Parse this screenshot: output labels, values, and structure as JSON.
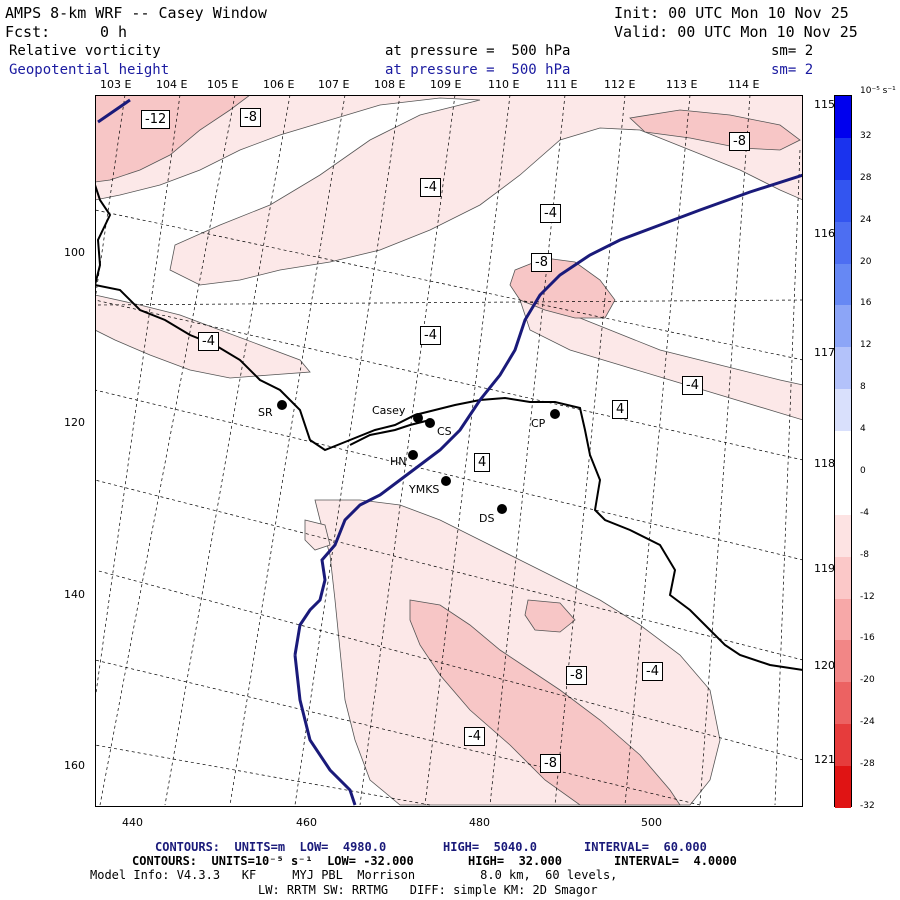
{
  "header": {
    "title": "AMPS 8-km WRF -- Casey Window",
    "init": "Init: 00 UTC Mon 10 Nov 25",
    "fcst_label": "Fcst:",
    "fcst_value": "0 h",
    "valid": "Valid: 00 UTC Mon 10 Nov 25",
    "field1_name": "Relative vorticity",
    "field1_level": "at pressure =  500 hPa",
    "field1_sm": "sm= 2",
    "field2_name": "Geopotential height",
    "field2_level": "at pressure =  500 hPa",
    "field2_sm": "sm= 2"
  },
  "axes": {
    "top_longitudes": [
      "103 E",
      "104 E",
      "105 E",
      "106 E",
      "107 E",
      "108 E",
      "109 E",
      "110 E",
      "111 E",
      "112 E",
      "113 E",
      "114 E"
    ],
    "right_longitudes": [
      "115 E",
      "116 E",
      "117 E",
      "118 E",
      "119 E",
      "120 E",
      "121 E"
    ],
    "x_ticks": [
      "440",
      "460",
      "480",
      "500"
    ],
    "y_ticks": [
      "100",
      "120",
      "140",
      "160"
    ]
  },
  "colorbar": {
    "unit": "10⁻⁵ s⁻¹",
    "labels": [
      "32",
      "28",
      "24",
      "20",
      "16",
      "12",
      "8",
      "4",
      "0",
      "-4",
      "-8",
      "-12",
      "-16",
      "-20",
      "-24",
      "-28",
      "-32"
    ],
    "colors": [
      "#0000ee",
      "#1a33ee",
      "#3355f0",
      "#4d6ef2",
      "#6688f4",
      "#8ca5f7",
      "#b3c2fa",
      "#d9e0fc",
      "#ffffff",
      "#ffffff",
      "#fde3e3",
      "#fbc8c8",
      "#f7a8a8",
      "#f28686",
      "#ec6262",
      "#e63c3c",
      "#e01414"
    ]
  },
  "map": {
    "vorticity_labels": [
      "-12",
      "-8",
      "-8",
      "-4",
      "-4",
      "-8",
      "-4",
      "-4",
      "-4",
      "4",
      "4",
      "-8",
      "-4",
      "-4",
      "-8"
    ],
    "stations": [
      {
        "name": "Casey"
      },
      {
        "name": "CS"
      },
      {
        "name": "SR"
      },
      {
        "name": "CP"
      },
      {
        "name": "HN"
      },
      {
        "name": "YMKS"
      },
      {
        "name": "DS"
      }
    ],
    "colors": {
      "height_contour": "#1a1a7a",
      "shade_weak": "#fce8e8",
      "shade_mid": "#f7c6c6",
      "coast": "#000000"
    }
  },
  "footer": {
    "line1_a": "CONTOURS:  UNITS=m  LOW=  4980.0",
    "line1_b": "HIGH=  5040.0",
    "line1_c": "INTERVAL=  60.000",
    "line2_a": "CONTOURS:  UNITS=10⁻⁵ s⁻¹  LOW= -32.000",
    "line2_b": "HIGH=  32.000",
    "line2_c": "INTERVAL=  4.0000",
    "line3": "Model Info: V4.3.3   KF     MYJ PBL  Morrison         8.0 km,  60 levels,",
    "line4": "LW: RRTM SW: RRTMG   DIFF: simple KM: 2D Smagor"
  }
}
